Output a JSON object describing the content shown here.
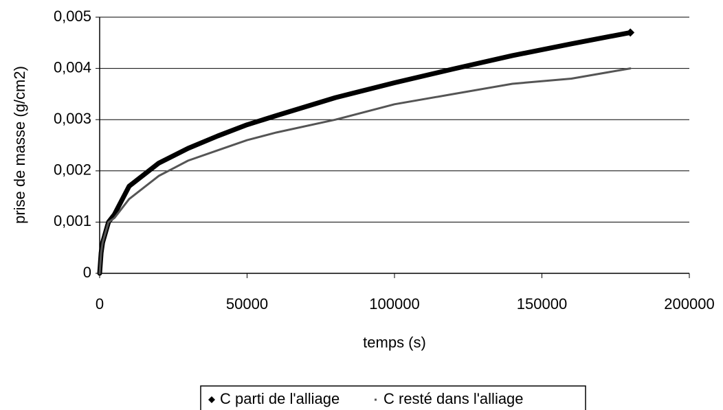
{
  "chart_data": {
    "type": "line",
    "xlabel": "temps (s)",
    "ylabel": "prise de masse (g/cm2)",
    "x": [
      0,
      500,
      1000,
      2000,
      3000,
      5000,
      10000,
      20000,
      30000,
      40000,
      50000,
      60000,
      80000,
      100000,
      120000,
      140000,
      160000,
      180000
    ],
    "series": [
      {
        "name": "C parti de l'alliage",
        "color": "#000000",
        "values": [
          0,
          0.0004,
          0.0006,
          0.0008,
          0.001,
          0.00115,
          0.0017,
          0.00215,
          0.00244,
          0.00268,
          0.0029,
          0.00308,
          0.00343,
          0.00372,
          0.00399,
          0.00425,
          0.00448,
          0.0047
        ]
      },
      {
        "name": "C resté dans l'alliage",
        "color": "#555555",
        "values": [
          0,
          0.0004,
          0.0006,
          0.0008,
          0.001,
          0.00108,
          0.00145,
          0.0019,
          0.0022,
          0.0024,
          0.0026,
          0.00275,
          0.003,
          0.0033,
          0.0035,
          0.0037,
          0.0038,
          0.004
        ]
      }
    ],
    "xlim": [
      0,
      200000
    ],
    "xticks": [
      0,
      50000,
      100000,
      150000,
      200000
    ],
    "ylim": [
      0,
      0.005
    ],
    "yticks": [
      0,
      {
        "value": 0.001,
        "label": "0,001"
      },
      {
        "value": 0.002,
        "label": "0,002"
      },
      {
        "value": 0.003,
        "label": "0,003"
      },
      {
        "value": 0.004,
        "label": "0,004"
      },
      {
        "value": 0.005,
        "label": "0,005"
      }
    ],
    "grid": true,
    "legend": "bottom"
  }
}
